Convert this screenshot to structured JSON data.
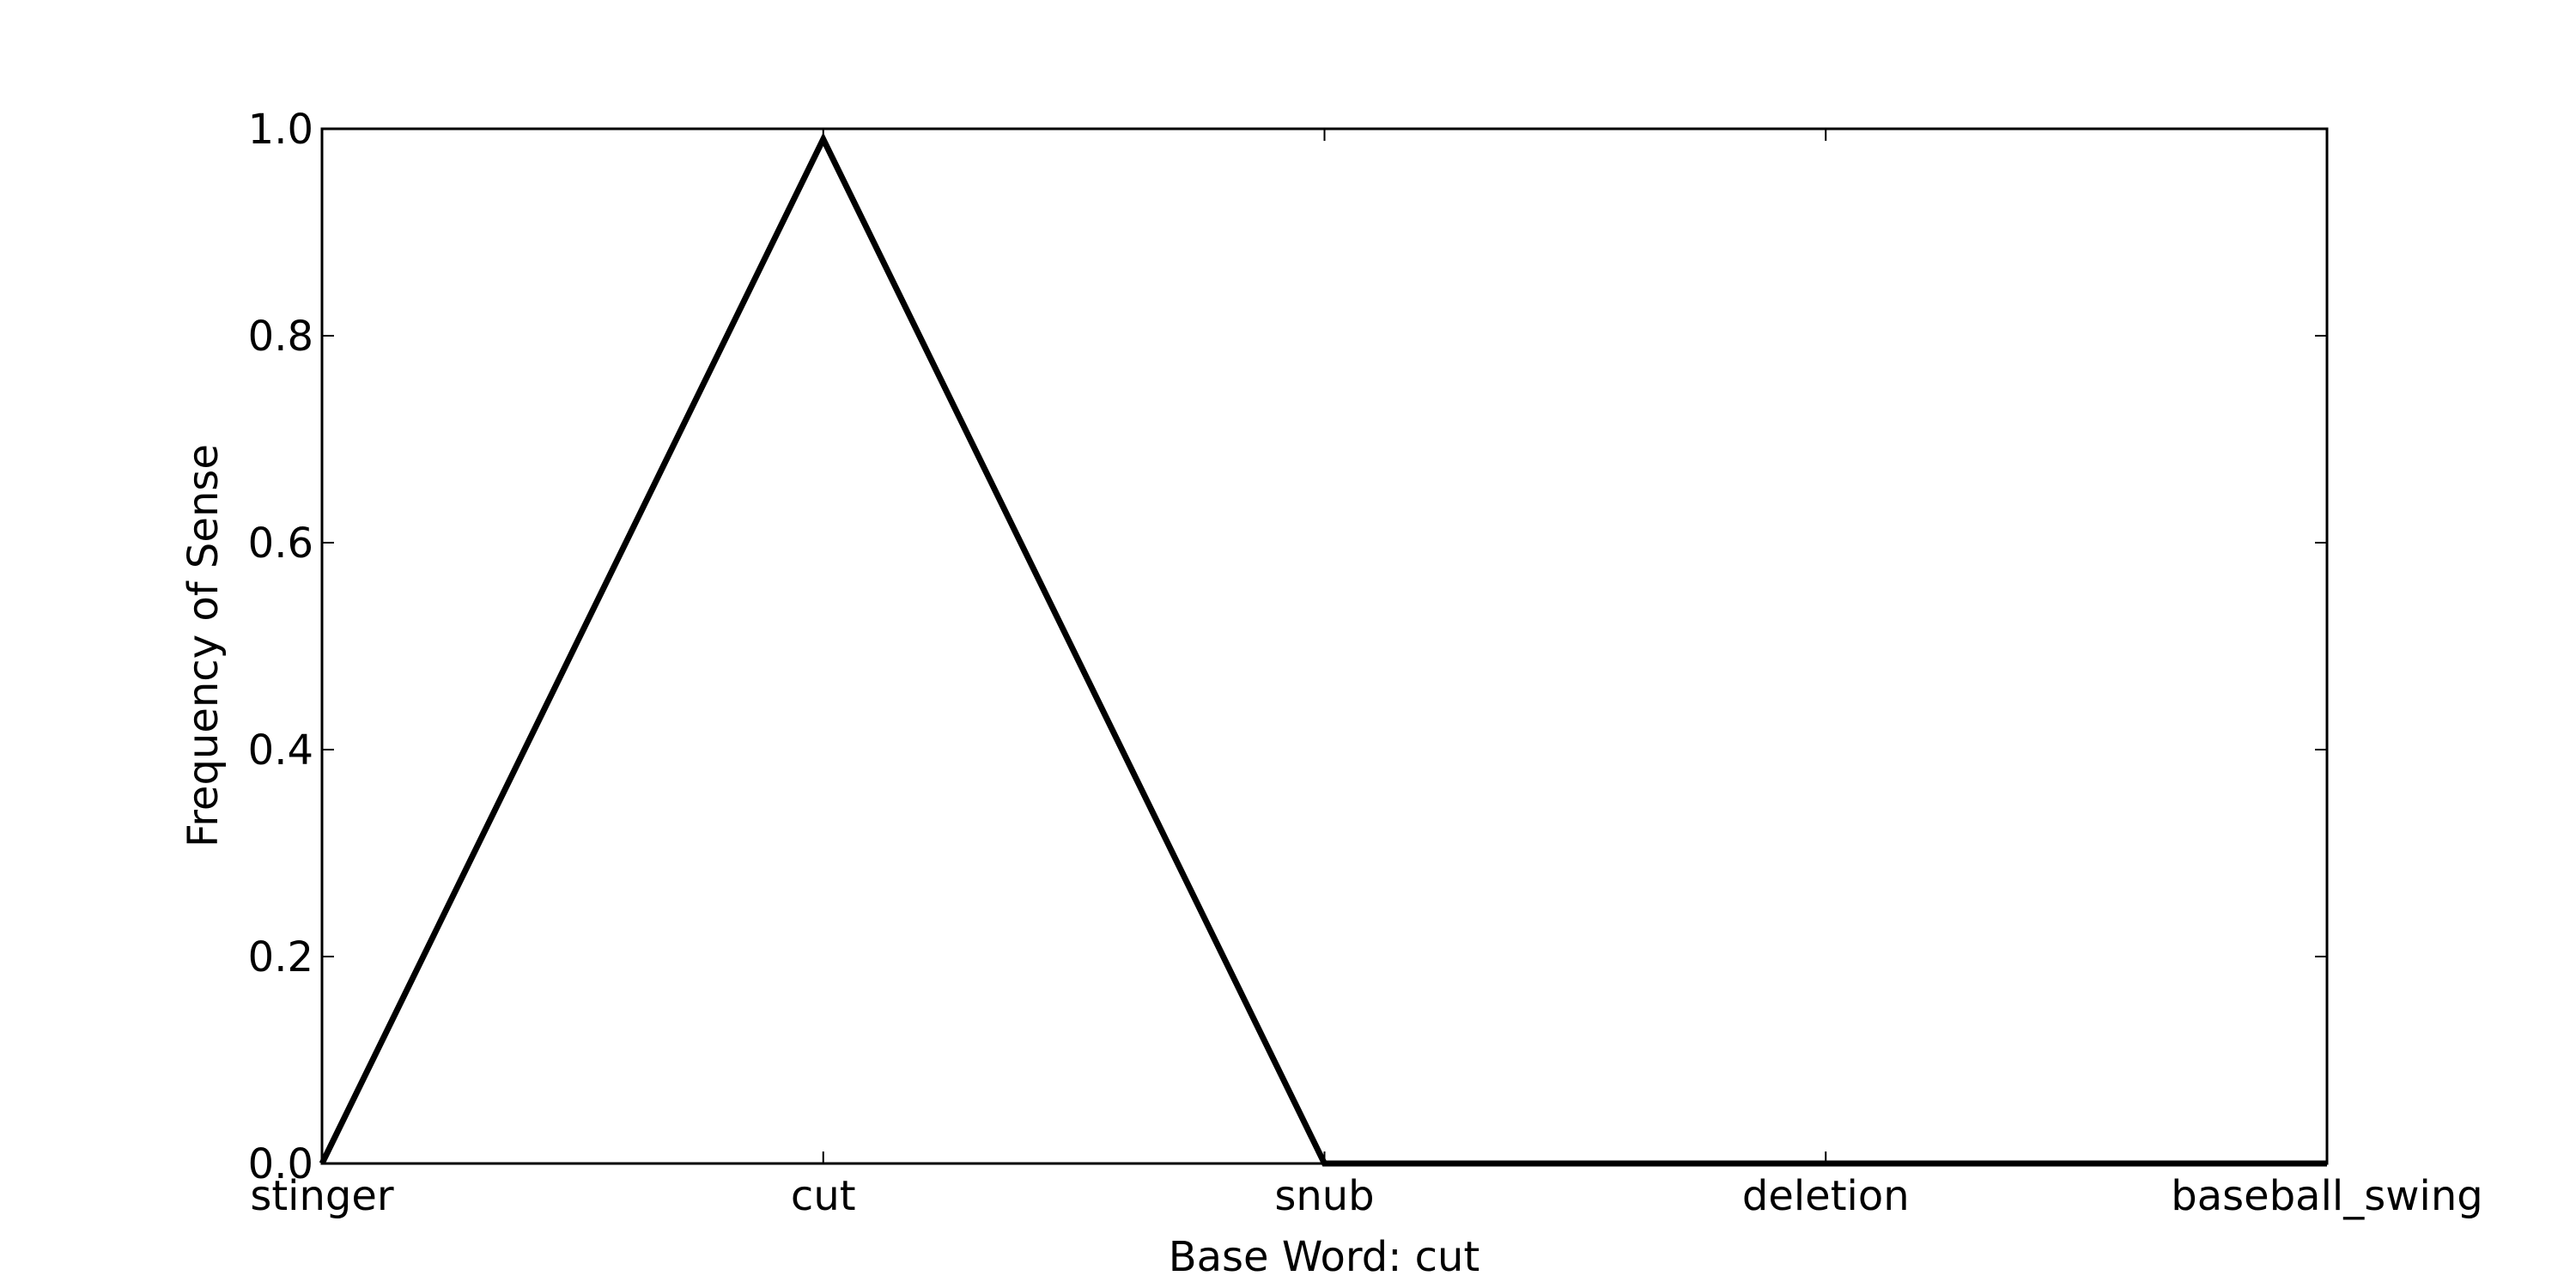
{
  "chart_data": {
    "type": "line",
    "title": "",
    "xlabel": "Base Word: cut",
    "ylabel": "Frequency of Sense",
    "categories": [
      "stinger",
      "cut",
      "snub",
      "deletion",
      "baseball_swing"
    ],
    "series": [
      {
        "values": [
          0.0,
          0.99,
          0.0,
          0.0,
          0.0
        ],
        "color": "#000000"
      }
    ],
    "ylim": [
      0.0,
      1.0
    ],
    "yticks": [
      "0.0",
      "0.2",
      "0.4",
      "0.6",
      "0.8",
      "1.0"
    ],
    "grid": false,
    "legend": "none"
  }
}
